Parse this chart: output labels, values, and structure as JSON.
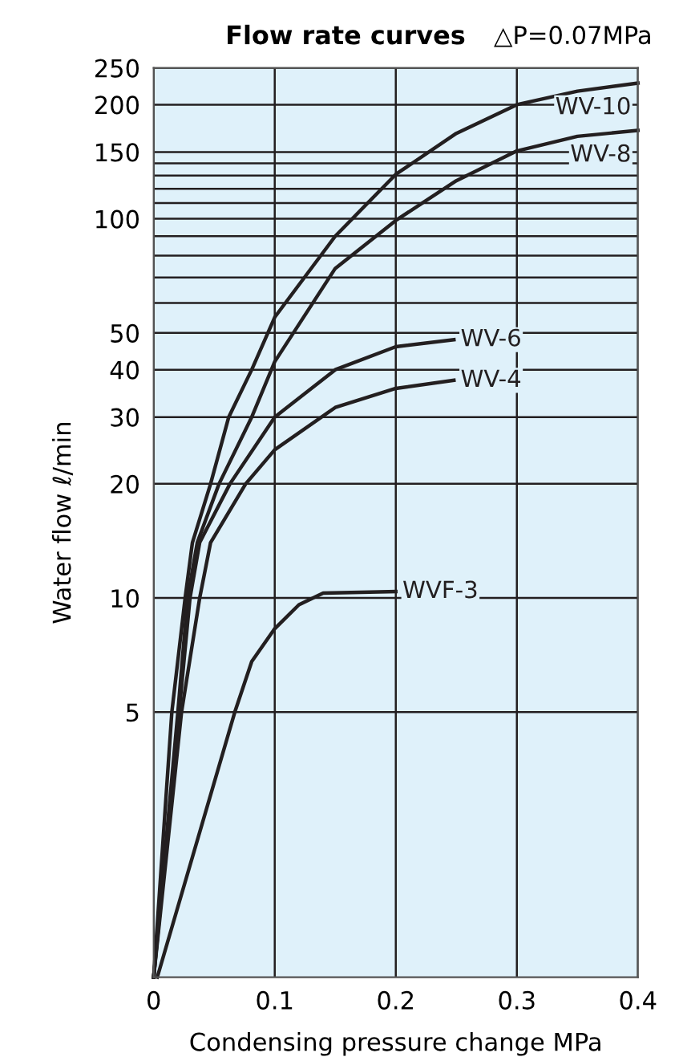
{
  "chart_data": {
    "type": "line",
    "title": "Flow rate curves",
    "subtitle": "△P=0.07MPa",
    "xlabel": "Condensing pressure change MPa",
    "ylabel": "Water flow ℓ/min",
    "log": "y",
    "xlim": [
      0,
      0.4
    ],
    "xticks": [
      0,
      0.1,
      0.2,
      0.3,
      0.4
    ],
    "ylim": [
      1,
      250
    ],
    "yticks": [
      5,
      10,
      20,
      30,
      40,
      50,
      {
        "value": 60,
        "label": null
      },
      {
        "value": 70,
        "label": null
      },
      {
        "value": 80,
        "label": null
      },
      {
        "value": 90,
        "label": null
      },
      100,
      {
        "value": 110,
        "label": null
      },
      {
        "value": 120,
        "label": null
      },
      {
        "value": 130,
        "label": null
      },
      {
        "value": 140,
        "label": null
      },
      150,
      200,
      250
    ],
    "grid": true,
    "series": [
      {
        "name": "WV-10",
        "color": "#231f20",
        "x": [
          0,
          0.015,
          0.026,
          0.032,
          0.047,
          0.062,
          0.081,
          0.1,
          0.15,
          0.2,
          0.25,
          0.3,
          0.35,
          0.4
        ],
        "values": [
          1,
          5,
          10,
          14,
          20,
          30,
          40,
          55,
          90,
          131,
          168,
          200,
          217,
          228
        ]
      },
      {
        "name": "WV-8",
        "color": "#231f20",
        "x": [
          0,
          0.02,
          0.028,
          0.036,
          0.054,
          0.081,
          0.1,
          0.15,
          0.2,
          0.25,
          0.3,
          0.35,
          0.4
        ],
        "values": [
          1,
          5,
          10,
          14,
          20,
          30,
          42,
          74,
          99,
          126,
          151,
          165,
          171
        ]
      },
      {
        "name": "WV-6",
        "color": "#231f20",
        "x": [
          0,
          0.021,
          0.03,
          0.038,
          0.063,
          0.1,
          0.15,
          0.2,
          0.248
        ],
        "values": [
          1,
          5,
          10,
          14,
          20,
          30,
          40,
          46,
          48
        ]
      },
      {
        "name": "WV-4",
        "color": "#231f20",
        "x": [
          0,
          0.023,
          0.038,
          0.047,
          0.076,
          0.1,
          0.15,
          0.2,
          0.248
        ],
        "values": [
          1,
          5,
          10,
          14,
          20,
          24.6,
          31.8,
          35.7,
          37.5
        ]
      },
      {
        "name": "WVF-3",
        "color": "#231f20",
        "x": [
          0.003,
          0.067,
          0.081,
          0.1,
          0.12,
          0.14,
          0.2
        ],
        "values": [
          1,
          5,
          6.8,
          8.3,
          9.6,
          10.3,
          10.4
        ]
      }
    ]
  }
}
